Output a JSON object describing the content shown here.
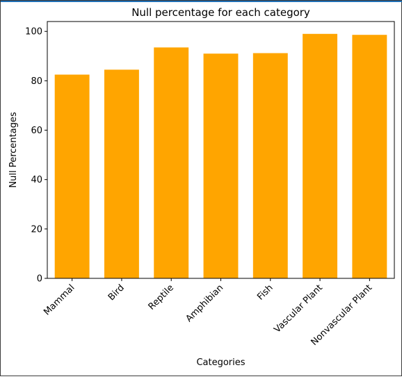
{
  "chart_data": {
    "type": "bar",
    "title": "Null percentage for each category",
    "xlabel": "Categories",
    "ylabel": "Null Percentages",
    "categories": [
      "Mammal",
      "Bird",
      "Reptile",
      "Amphibian",
      "Fish",
      "Vascular Plant",
      "Nonvascular Plant"
    ],
    "values": [
      82.5,
      84.5,
      93.5,
      91.0,
      91.2,
      99.0,
      98.6
    ],
    "yticks": [
      0,
      20,
      40,
      60,
      80,
      100
    ],
    "ylim": [
      0,
      104
    ],
    "bar_color": "#ffa500",
    "grid": false,
    "legend": false
  }
}
